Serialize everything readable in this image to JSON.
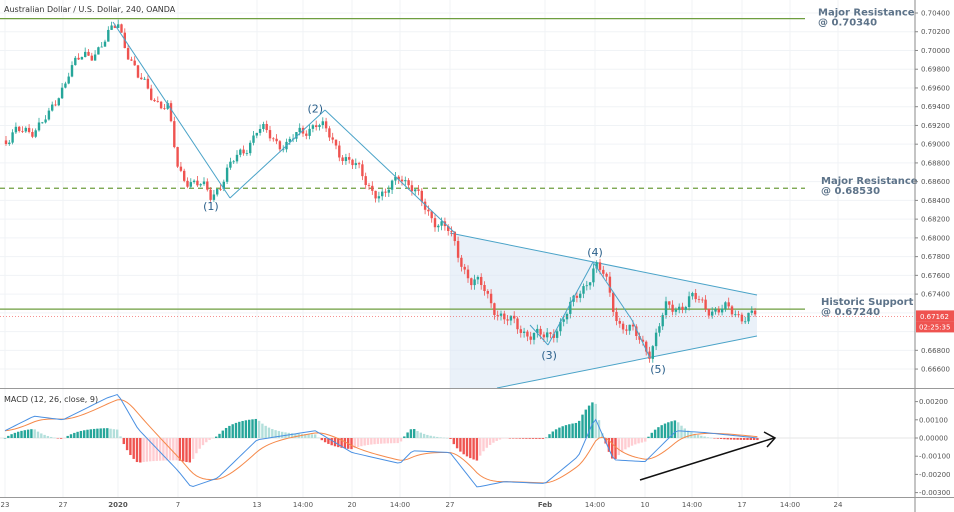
{
  "header": {
    "title": "Australian Dollar / U.S. Dollar, 240, OANDA"
  },
  "chart_data": [
    {
      "type": "candlestick",
      "title": "Australian Dollar / U.S. Dollar, 240, OANDA",
      "ylim": [
        0.665,
        0.705
      ],
      "grid": true,
      "price_ticks": [
        "0.70400",
        "0.70200",
        "0.70000",
        "0.69800",
        "0.69600",
        "0.69400",
        "0.69200",
        "0.69000",
        "0.68800",
        "0.68600",
        "0.68400",
        "0.68200",
        "0.68000",
        "0.67800",
        "0.67600",
        "0.67400",
        "0.66800",
        "0.66600"
      ],
      "x_ticks": [
        "23",
        "27",
        "2020",
        "7",
        "13",
        "14:00",
        "20",
        "14:00",
        "27",
        "Feb",
        "14:00",
        "10",
        "14:00",
        "17",
        "14:00",
        "24"
      ],
      "price_path": [
        [
          "2019-12-23T00:00",
          0.6904
        ],
        [
          "2019-12-26T00:00",
          0.6926
        ],
        [
          "2019-12-27T12:00",
          0.6979
        ],
        [
          "2019-12-31T00:00",
          0.7011
        ],
        [
          "2020-01-01T00:00",
          0.703
        ],
        [
          "2020-01-03T00:00",
          0.6969
        ],
        [
          "2020-01-06T00:00",
          0.6936
        ],
        [
          "2020-01-07T00:00",
          0.6872
        ],
        [
          "2020-01-09T12:00",
          0.6845
        ],
        [
          "2020-01-13T00:00",
          0.6915
        ],
        [
          "2020-01-15T00:00",
          0.6899
        ],
        [
          "2020-01-17T00:00",
          0.6925
        ],
        [
          "2020-01-20T00:00",
          0.6878
        ],
        [
          "2020-01-22T00:00",
          0.684
        ],
        [
          "2020-01-23T00:00",
          0.6872
        ],
        [
          "2020-01-24T12:00",
          0.684
        ],
        [
          "2020-01-27T00:00",
          0.6803
        ],
        [
          "2020-01-28T12:00",
          0.6755
        ],
        [
          "2020-01-29T12:00",
          0.6744
        ],
        [
          "2020-01-31T00:00",
          0.6712
        ],
        [
          "2020-02-03T00:00",
          0.6691
        ],
        [
          "2020-02-04T12:00",
          0.6723
        ],
        [
          "2020-02-06T00:00",
          0.6771
        ],
        [
          "2020-02-06T20:00",
          0.6755
        ],
        [
          "2020-02-07T20:00",
          0.6712
        ],
        [
          "2020-02-10T08:00",
          0.668
        ],
        [
          "2020-02-11T08:00",
          0.6723
        ],
        [
          "2020-02-13T00:00",
          0.6734
        ],
        [
          "2020-02-15T00:00",
          0.6723
        ],
        [
          "2020-02-18T00:00",
          0.6716
        ]
      ],
      "last_price": "0.67162",
      "countdown": "02:25:35",
      "levels": [
        {
          "label": "Major Resistance",
          "value_text": "@ 0.70340",
          "value": 0.7034,
          "style": "solid"
        },
        {
          "label": "Major Resistance",
          "value_text": "@ 0.68530",
          "value": 0.6853,
          "style": "dashed"
        },
        {
          "label": "Historic Support",
          "value_text": "@ 0.67240",
          "value": 0.6724,
          "style": "solid"
        }
      ],
      "wave_labels": [
        {
          "text": "(1)",
          "date": "2020-01-09T12:00",
          "price": 0.6834
        },
        {
          "text": "(2)",
          "date": "2020-01-17T00:00",
          "price": 0.6938
        },
        {
          "text": "(3)",
          "date": "2020-02-03T06:00",
          "price": 0.6675
        },
        {
          "text": "(4)",
          "date": "2020-02-06T00:00",
          "price": 0.6785
        },
        {
          "text": "(5)",
          "date": "2020-02-10T20:00",
          "price": 0.666
        }
      ],
      "colors": {
        "up": "#26a69a",
        "down": "#ef5350",
        "level": "#6e9e3f",
        "annotation": "#4aa3c8",
        "label": "#5d7389",
        "triangle_fill": "#dce8f5"
      }
    },
    {
      "type": "line",
      "title": "MACD (12, 26, close, 9)",
      "ylim": [
        -0.003,
        0.0025
      ],
      "y_ticks": [
        "0.00200",
        "0.00100",
        "0.00000",
        "-0.00100",
        "-0.00200",
        "-0.00300"
      ],
      "series": [
        {
          "name": "MACD",
          "color": "#4a90e2",
          "values": [
            [
              "2019-12-23T00:00",
              0.0004
            ],
            [
              "2019-12-25T00:00",
              0.0012
            ],
            [
              "2019-12-27T00:00",
              0.001
            ],
            [
              "2019-12-31T00:00",
              0.0022
            ],
            [
              "2020-01-01T00:00",
              0.0024
            ],
            [
              "2020-01-03T00:00",
              0.0005
            ],
            [
              "2020-01-07T00:00",
              -0.0018
            ],
            [
              "2020-01-08T00:00",
              -0.0027
            ],
            [
              "2020-01-10T00:00",
              -0.0022
            ],
            [
              "2020-01-13T00:00",
              -0.0001
            ],
            [
              "2020-01-17T00:00",
              0.0004
            ],
            [
              "2020-01-20T00:00",
              -0.0008
            ],
            [
              "2020-01-23T00:00",
              -0.0014
            ],
            [
              "2020-01-24T00:00",
              -0.0007
            ],
            [
              "2020-01-27T00:00",
              -0.0008
            ],
            [
              "2020-01-29T00:00",
              -0.0027
            ],
            [
              "2020-01-31T00:00",
              -0.0024
            ],
            [
              "2020-02-03T00:00",
              -0.0025
            ],
            [
              "2020-02-05T00:00",
              -0.001
            ],
            [
              "2020-02-06T00:00",
              0.0011
            ],
            [
              "2020-02-07T12:00",
              -0.0012
            ],
            [
              "2020-02-10T00:00",
              -0.0013
            ],
            [
              "2020-02-12T00:00",
              0.0004
            ],
            [
              "2020-02-14T00:00",
              0.0003
            ],
            [
              "2020-02-18T00:00",
              0.0
            ]
          ]
        },
        {
          "name": "Signal",
          "color": "#f5894a"
        }
      ]
    }
  ]
}
